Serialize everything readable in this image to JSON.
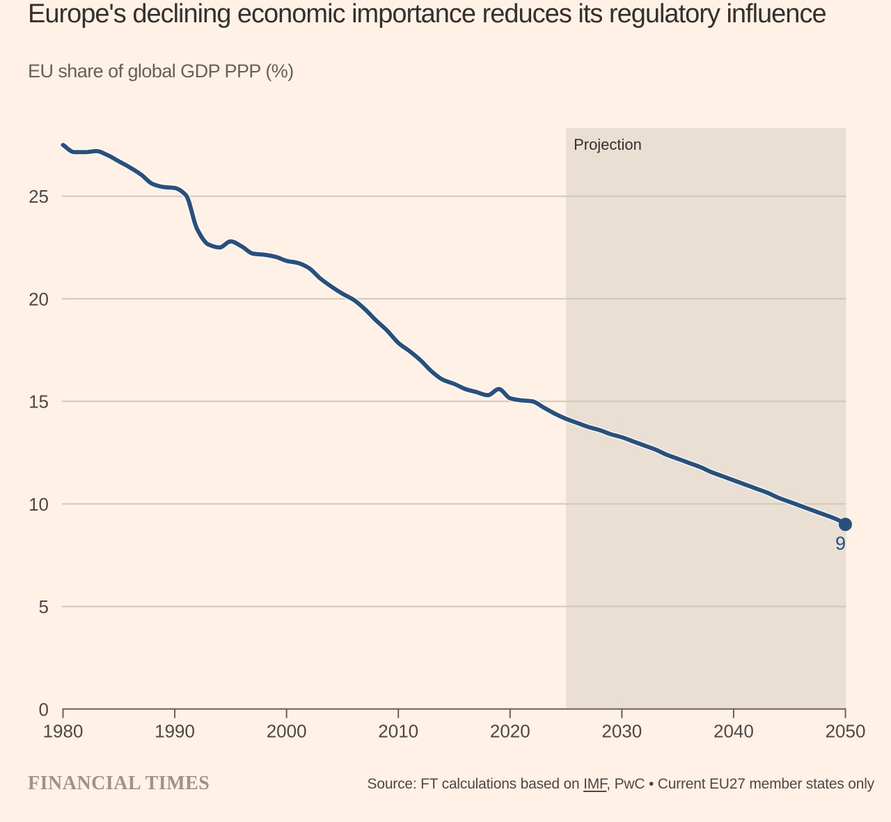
{
  "title": "Europe's declining economic importance reduces its regulatory influence",
  "subtitle": "EU share of global GDP PPP (%)",
  "annotations": {
    "projection_label": "Projection",
    "end_value_label": "9"
  },
  "footer": {
    "brand": "FINANCIAL TIMES",
    "source_prefix": "Source: FT calculations based on ",
    "source_link": "IMF",
    "source_suffix": ", PwC • Current EU27 member states only"
  },
  "colors": {
    "background": "#FFF1E5",
    "line": "#27507C",
    "line_casing": "rgba(255,255,255,0.7)",
    "projection_band": "#E9DFD2",
    "gridline": "#D2C7BA",
    "axis": "#66605C",
    "title_text": "#33302E",
    "subtitle_text": "#66605B",
    "tick_text": "#4D4845",
    "annotation_text": "#33302E",
    "brand_text": "#9C948A",
    "source_text": "#4D4845"
  },
  "chart_data": {
    "type": "line",
    "title": "Europe's declining economic importance reduces its regulatory influence",
    "subtitle": "EU share of global GDP PPP (%)",
    "xlabel": "",
    "ylabel": "EU share of global GDP PPP (%)",
    "xlim": [
      1980,
      2050
    ],
    "ylim": [
      0,
      28.3
    ],
    "grid": "horizontal",
    "legend": "none",
    "x_ticks": [
      1980,
      1990,
      2000,
      2010,
      2020,
      2030,
      2040,
      2050
    ],
    "y_ticks": [
      0,
      5,
      10,
      15,
      20,
      25
    ],
    "projection_start": 2025,
    "projection_label": "Projection",
    "end_point": {
      "x": 2050,
      "y": 9,
      "label": "9"
    },
    "series": [
      {
        "name": "EU share of global GDP PPP (%)",
        "x": [
          1980,
          1981,
          1982,
          1983,
          1984,
          1985,
          1986,
          1987,
          1988,
          1989,
          1990,
          1991,
          1992,
          1993,
          1994,
          1995,
          1996,
          1997,
          1998,
          1999,
          2000,
          2001,
          2002,
          2003,
          2004,
          2005,
          2006,
          2007,
          2008,
          2009,
          2010,
          2011,
          2012,
          2013,
          2014,
          2015,
          2016,
          2017,
          2018,
          2019,
          2020,
          2021,
          2022,
          2023,
          2024,
          2025,
          2026,
          2027,
          2028,
          2029,
          2030,
          2031,
          2032,
          2033,
          2034,
          2035,
          2036,
          2037,
          2038,
          2039,
          2040,
          2041,
          2042,
          2043,
          2044,
          2045,
          2046,
          2047,
          2048,
          2049,
          2050
        ],
        "values": [
          27.5,
          27.15,
          27.15,
          27.2,
          27.0,
          26.7,
          26.4,
          26.05,
          25.6,
          25.45,
          25.4,
          25.05,
          23.4,
          22.65,
          22.5,
          22.8,
          22.55,
          22.2,
          22.15,
          22.05,
          21.85,
          21.75,
          21.5,
          21.0,
          20.6,
          20.25,
          19.95,
          19.5,
          18.95,
          18.45,
          17.85,
          17.45,
          17.0,
          16.45,
          16.05,
          15.85,
          15.6,
          15.45,
          15.3,
          15.6,
          15.15,
          15.05,
          15.0,
          14.7,
          14.4,
          14.15,
          13.95,
          13.75,
          13.6,
          13.4,
          13.25,
          13.05,
          12.85,
          12.65,
          12.4,
          12.2,
          12.0,
          11.8,
          11.55,
          11.35,
          11.15,
          10.95,
          10.75,
          10.55,
          10.3,
          10.1,
          9.9,
          9.7,
          9.5,
          9.3,
          9.05
        ]
      }
    ]
  }
}
